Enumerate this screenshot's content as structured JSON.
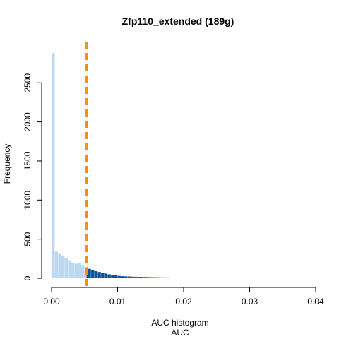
{
  "chart_data": {
    "type": "bar",
    "title": "Zfp110_extended (189g)",
    "xlabel": "AUC",
    "xlabel_top": "AUC histogram",
    "ylabel": "Frequency",
    "xlim": [
      0.0,
      0.04
    ],
    "ylim": [
      0,
      2900
    ],
    "x_ticks": [
      0.0,
      0.01,
      0.02,
      0.03,
      0.04
    ],
    "x_tick_labels": [
      "0.00",
      "0.01",
      "0.02",
      "0.03",
      "0.04"
    ],
    "y_ticks": [
      0,
      500,
      1000,
      1500,
      2000,
      2500
    ],
    "y_tick_labels": [
      "0",
      "500",
      "1000",
      "1500",
      "2000",
      "2500"
    ],
    "bin_start": 0.0,
    "bin_width": 0.0005,
    "values": [
      2880,
      340,
      320,
      290,
      260,
      230,
      200,
      185,
      190,
      170,
      140,
      120,
      100,
      90,
      80,
      72,
      60,
      50,
      42,
      36,
      30,
      26,
      24,
      22,
      20,
      19,
      18,
      17,
      16,
      15,
      14,
      13,
      12,
      11,
      10,
      10,
      9,
      9,
      8,
      8,
      7,
      7,
      7,
      6,
      6,
      6,
      5,
      5,
      5,
      5,
      4,
      4,
      4,
      4,
      4,
      3,
      3,
      3,
      3,
      3,
      3,
      3,
      2,
      2,
      2,
      2,
      2,
      2,
      2,
      2,
      2,
      2,
      2,
      2,
      2,
      1,
      1,
      1
    ],
    "threshold": 0.0053,
    "colors": {
      "below_threshold": "#bdd7ee",
      "above_threshold": "#08519c",
      "threshold_line": "#ff8c00",
      "axis": "#000000"
    }
  }
}
